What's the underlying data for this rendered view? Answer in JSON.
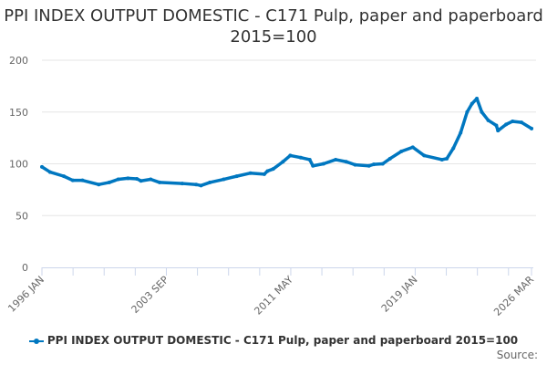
{
  "chart_data": {
    "type": "line",
    "title": "PPI INDEX OUTPUT DOMESTIC - C171 Pulp, paper and paperboard 2015=100",
    "xlabel": "",
    "ylabel": "",
    "ylim": [
      0,
      200
    ],
    "yticks": [
      0,
      50,
      100,
      150,
      200
    ],
    "xlim": [
      1996.0,
      2026.167
    ],
    "xtick_labels": [
      {
        "label": "1996 JAN",
        "x": 1996.0
      },
      {
        "label": "2003 SEP",
        "x": 2003.667
      },
      {
        "label": "2011 MAY",
        "x": 2011.333
      },
      {
        "label": "2019 JAN",
        "x": 2019.0
      },
      {
        "label": "2026 MAR",
        "x": 2026.167
      }
    ],
    "grid": true,
    "legend_position": "bottom",
    "series": [
      {
        "name": "PPI INDEX OUTPUT DOMESTIC - C171 Pulp, paper and paperboard 2015=100",
        "color": "#0077c0",
        "x": [
          1996.0,
          1996.5,
          1997.35,
          1997.9,
          1998.5,
          1999.5,
          2000.15,
          2000.7,
          2001.3,
          2001.85,
          2002.1,
          2002.7,
          2003.25,
          2004.65,
          2005.5,
          2005.8,
          2006.35,
          2007.2,
          2008.0,
          2008.85,
          2009.7,
          2009.9,
          2010.25,
          2010.85,
          2011.3,
          2011.95,
          2012.5,
          2012.7,
          2013.35,
          2014.1,
          2014.75,
          2015.3,
          2016.15,
          2016.45,
          2017.0,
          2017.45,
          2018.15,
          2018.85,
          2019.55,
          2020.65,
          2020.95,
          2021.35,
          2021.8,
          2022.2,
          2022.5,
          2022.8,
          2023.1,
          2023.5,
          2024.0,
          2024.1,
          2024.6,
          2025.0,
          2025.55,
          2026.17
        ],
        "values": [
          97,
          92,
          88,
          84,
          84,
          80,
          82,
          85,
          86,
          85.5,
          83.5,
          85,
          82,
          81,
          80,
          79,
          82,
          85,
          88,
          91,
          90,
          93,
          95,
          102,
          108,
          106,
          104,
          98,
          100,
          104,
          102,
          99,
          98,
          99.5,
          100,
          105,
          112,
          116,
          108,
          104,
          105,
          115,
          130,
          150,
          158,
          163,
          150,
          142,
          137,
          132,
          138,
          141,
          140,
          134
        ]
      }
    ]
  },
  "source_label": "Source:"
}
